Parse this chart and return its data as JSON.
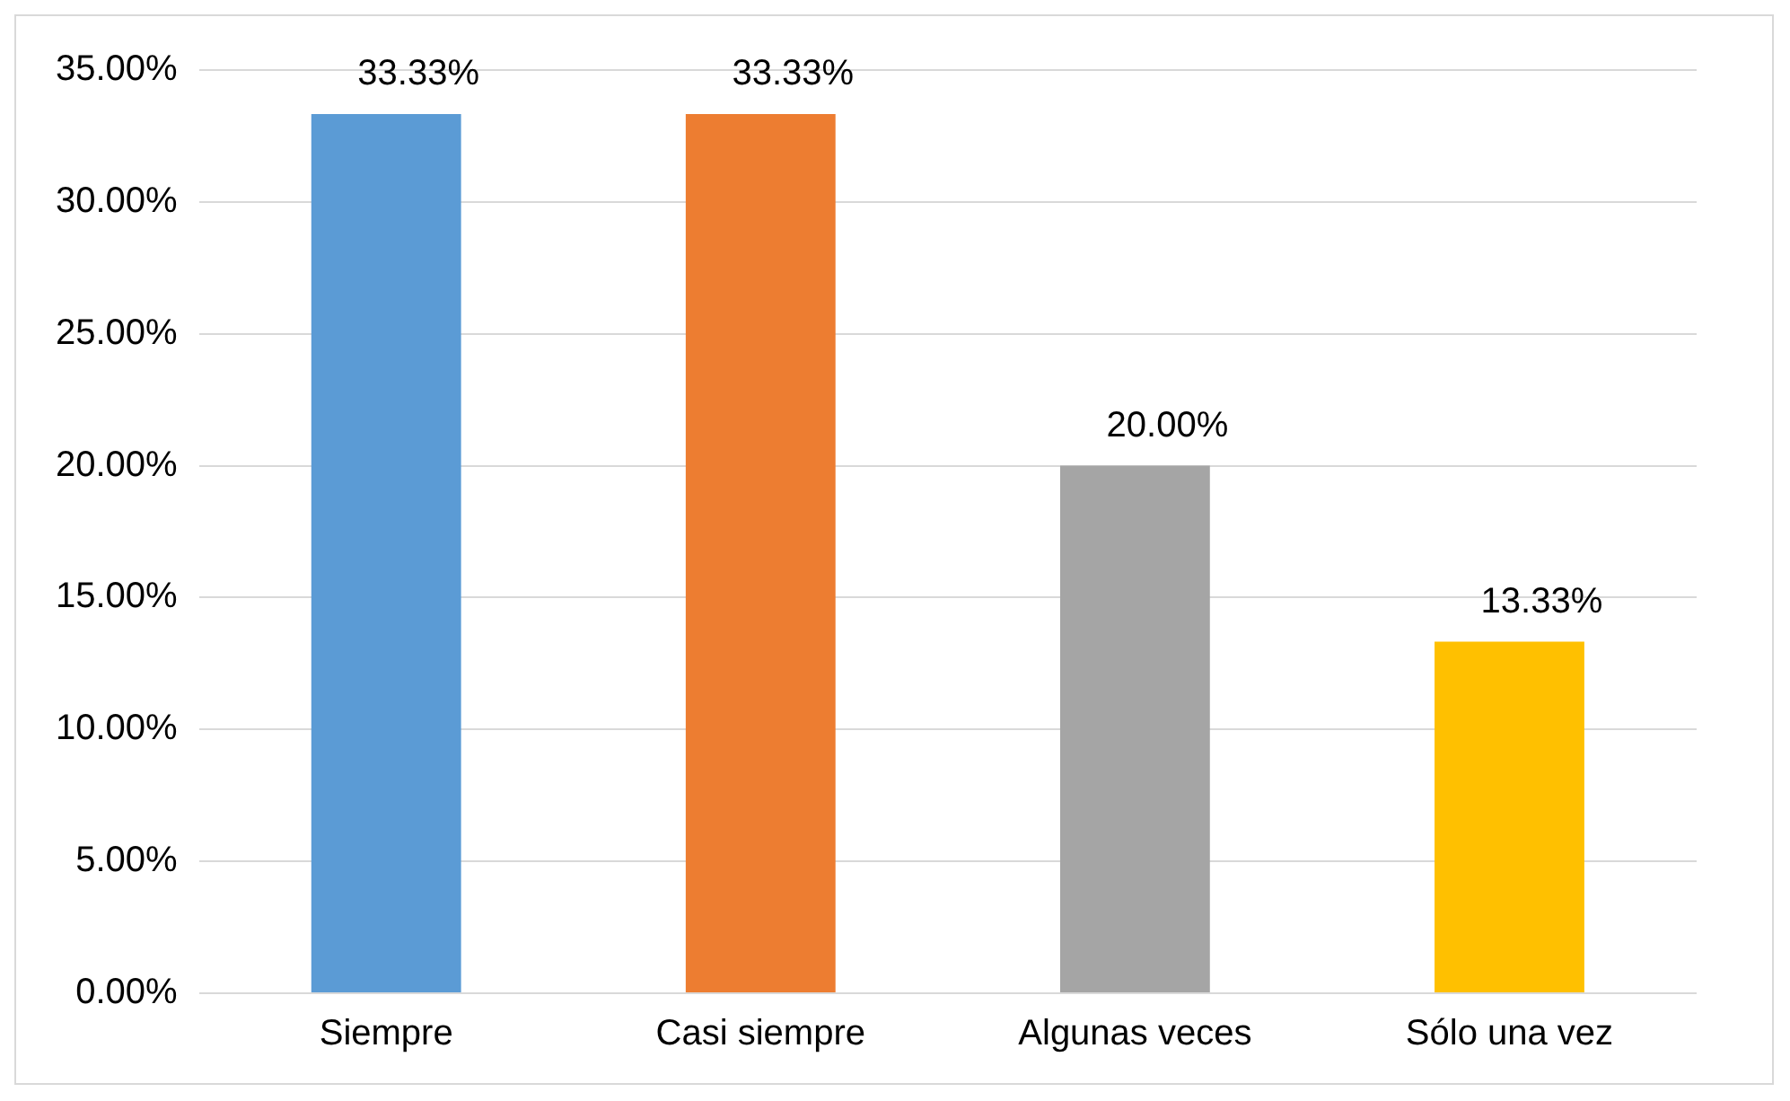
{
  "chart_data": {
    "type": "bar",
    "categories": [
      "Siempre",
      "Casi siempre",
      "Algunas veces",
      "Sólo una vez"
    ],
    "values": [
      33.33,
      33.33,
      20.0,
      13.33
    ],
    "colors": [
      "#5b9bd5",
      "#ed7d31",
      "#a5a5a5",
      "#ffc000"
    ],
    "value_labels": [
      "33.33%",
      "33.33%",
      "20.00%",
      "13.33%"
    ],
    "ylim": [
      0,
      35
    ],
    "yticks": [
      {
        "value": 0,
        "label": "0.00%"
      },
      {
        "value": 5,
        "label": "5.00%"
      },
      {
        "value": 10,
        "label": "10.00%"
      },
      {
        "value": 15,
        "label": "15.00%"
      },
      {
        "value": 20,
        "label": "20.00%"
      },
      {
        "value": 25,
        "label": "25.00%"
      },
      {
        "value": 30,
        "label": "30.00%"
      },
      {
        "value": 35,
        "label": "35.00%"
      }
    ],
    "grid": "y"
  }
}
